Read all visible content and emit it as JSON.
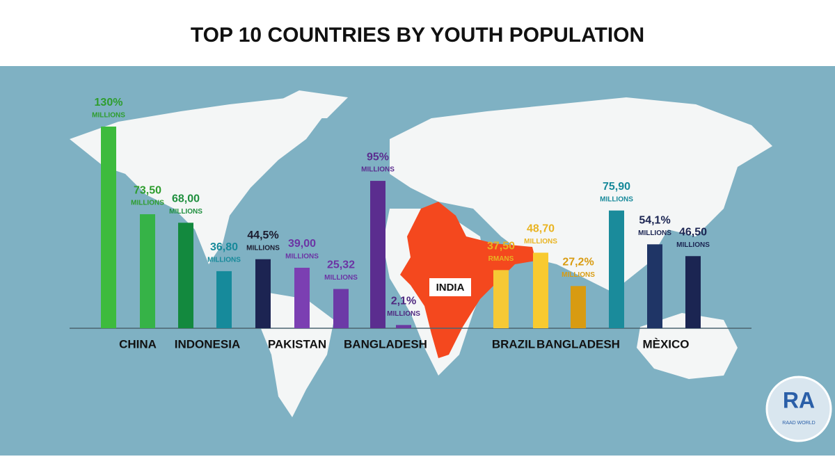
{
  "chart_data": {
    "type": "bar",
    "title": "TOP 10 COUNTRIES BY YOUTH POPULATION",
    "values": [
      130,
      73.5,
      68,
      36.8,
      44.5,
      39,
      25.32,
      95,
      2.1,
      37.5,
      48.7,
      27.2,
      75.9,
      54.1,
      46.5
    ],
    "value_labels": [
      "130%",
      "73,50",
      "68,00",
      "36,80",
      "44,5%",
      "39,00",
      "25,32",
      "95%",
      "2,1%",
      "37,50",
      "48,70",
      "27,2%",
      "75,90",
      "54,1%",
      "46,50"
    ],
    "units": [
      "MILLIONS",
      "MILLIONS",
      "MILLIONS",
      "MILLIONS",
      "MILLIONS",
      "MILLIONS",
      "MILLIONS",
      "MILLIONS",
      "MILLIONS",
      "RMANS",
      "MILLIONS",
      "MILLIONS",
      "MILLIONS",
      "MILLIONS",
      "MILLIONS"
    ],
    "colors": [
      "#3dbb3d",
      "#36b347",
      "#13893e",
      "#168a9b",
      "#1c2452",
      "#7b3fb2",
      "#6c3aa7",
      "#5b2d8f",
      "#6b3aa1",
      "#f6c935",
      "#f8ca30",
      "#d89b12",
      "#1a8b9b",
      "#1f3566",
      "#1b2552"
    ],
    "label_colors": [
      "#2e9d2e",
      "#2e9d2e",
      "#1f8f3e",
      "#17899a",
      "#1b1b2e",
      "#6c34a4",
      "#6c34a4",
      "#5b2d8f",
      "#4f2a80",
      "#e9b422",
      "#e9b422",
      "#d99c12",
      "#17899a",
      "#1b2552",
      "#1b2552"
    ],
    "country_labels": [
      "CHINA",
      "INDONESIA",
      "PAKISTAN",
      "BANGLADESH",
      "BRAZIL",
      "BANGLADESH",
      "MÈXICO"
    ],
    "map_label": "INDIA",
    "logo_text": "RA",
    "logo_caption": "RAAD WORLD"
  }
}
